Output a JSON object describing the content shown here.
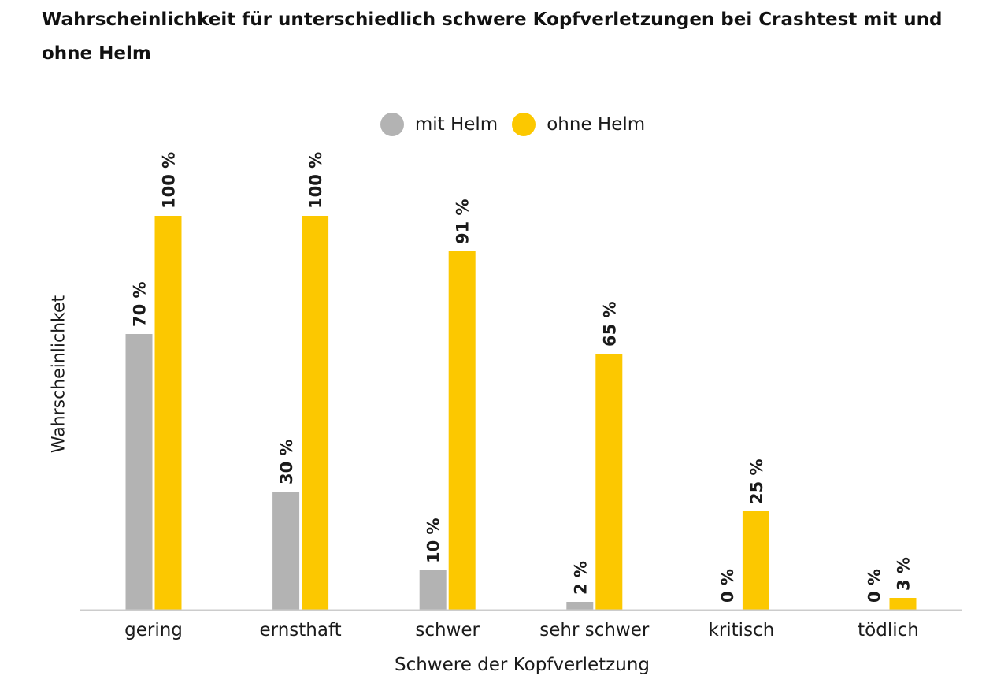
{
  "colors": {
    "mit_helm": "#b3b3b3",
    "ohne_helm": "#fcc800",
    "axis": "#cccccc",
    "text": "#1a1a1a"
  },
  "chart_data": {
    "type": "bar",
    "title": "Wahrscheinlichkeit für unterschiedlich schwere Kopfverletzungen bei Crashtest mit und ohne Helm",
    "xlabel": "Schwere der Kopfverletzung",
    "ylabel": "Wahrscheinlichket",
    "ylim": [
      0,
      100
    ],
    "grid": false,
    "legend_position": "top-center",
    "categories": [
      "gering",
      "ernsthaft",
      "schwer",
      "sehr schwer",
      "kritisch",
      "tödlich"
    ],
    "series": [
      {
        "name": "mit Helm",
        "color": "#b3b3b3",
        "values": [
          70,
          30,
          10,
          2,
          0,
          0
        ],
        "labels": [
          "70 %",
          "30 %",
          "10 %",
          "2 %",
          "0 %",
          "0 %"
        ]
      },
      {
        "name": "ohne Helm",
        "color": "#fcc800",
        "values": [
          100,
          100,
          91,
          65,
          25,
          3
        ],
        "labels": [
          "100 %",
          "100 %",
          "91 %",
          "65 %",
          "25 %",
          "3 %"
        ]
      }
    ]
  }
}
